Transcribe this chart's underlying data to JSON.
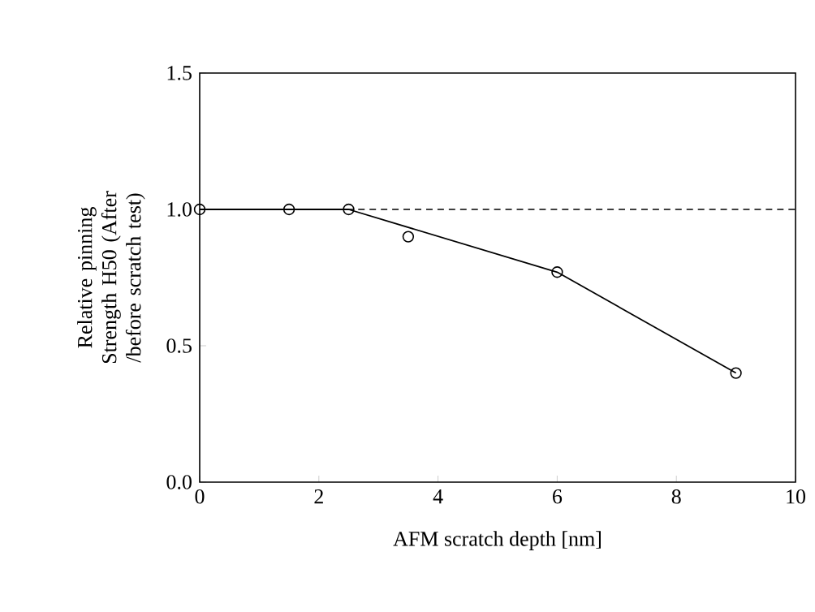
{
  "chart_data": {
    "type": "scatter",
    "xlabel": "AFM scratch depth [nm]",
    "ylabel": "Relative pinning Strength H50 (After /before scratch test)",
    "xlim": [
      0,
      10
    ],
    "ylim": [
      0,
      1.5
    ],
    "xticks": [
      0,
      2,
      4,
      6,
      8,
      10
    ],
    "yticks": [
      {
        "value": 0,
        "label": "0.0"
      },
      {
        "value": 0.5,
        "label": "0.5"
      },
      {
        "value": 1,
        "label": "1.0"
      },
      {
        "value": 1.5,
        "label": "1.5"
      }
    ],
    "marker": "circle",
    "series": [
      {
        "color": "#000000",
        "x": [
          0,
          1.5,
          2.5,
          3.5,
          6,
          9
        ],
        "values": [
          1.0,
          1.0,
          1.0,
          0.9,
          0.77,
          0.4
        ]
      },
      {
        "type": "line",
        "marker": "none",
        "color": "#000000",
        "x": [
          0,
          2.5,
          6,
          9
        ],
        "values": [
          1.0,
          1.0,
          0.77,
          0.4
        ]
      }
    ],
    "ref_lines": [
      {
        "axis": "y",
        "value": 1,
        "line_style": "dashed"
      }
    ]
  }
}
